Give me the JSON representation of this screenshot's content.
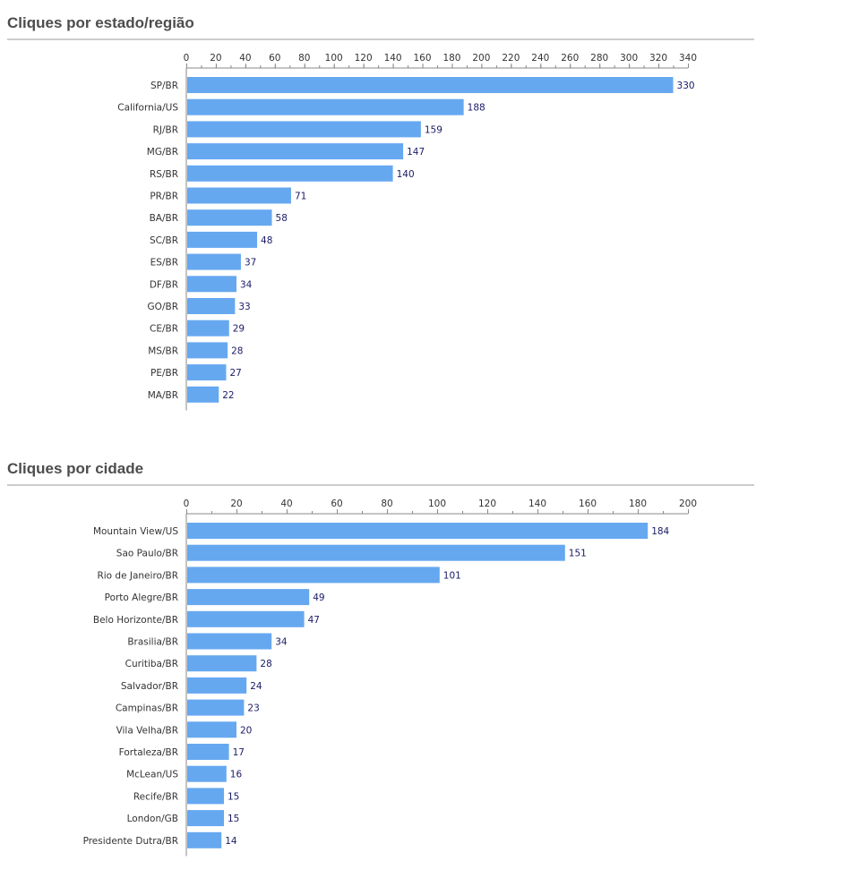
{
  "colors": {
    "bar": "#66a8f0",
    "value_label": "#1a1a66",
    "category_label": "#333333",
    "axis": "#888888",
    "title": "#4d4d4d"
  },
  "chart_data": [
    {
      "type": "bar",
      "orientation": "horizontal",
      "title": "Cliques por estado/região",
      "xlim": [
        0,
        340
      ],
      "ticks": [
        0,
        20,
        40,
        60,
        80,
        100,
        120,
        140,
        160,
        180,
        200,
        220,
        240,
        260,
        280,
        300,
        320,
        340
      ],
      "minor_tick_step": 10,
      "axis_position": "top",
      "grid": false,
      "categories": [
        "SP/BR",
        "California/US",
        "RJ/BR",
        "MG/BR",
        "RS/BR",
        "PR/BR",
        "BA/BR",
        "SC/BR",
        "ES/BR",
        "DF/BR",
        "GO/BR",
        "CE/BR",
        "MS/BR",
        "PE/BR",
        "MA/BR"
      ],
      "values": [
        330,
        188,
        159,
        147,
        140,
        71,
        58,
        48,
        37,
        34,
        33,
        29,
        28,
        27,
        22
      ]
    },
    {
      "type": "bar",
      "orientation": "horizontal",
      "title": "Cliques por cidade",
      "xlim": [
        0,
        200
      ],
      "ticks": [
        0,
        20,
        40,
        60,
        80,
        100,
        120,
        140,
        160,
        180,
        200
      ],
      "minor_tick_step": 10,
      "axis_position": "top",
      "grid": false,
      "categories": [
        "Mountain View/US",
        "Sao Paulo/BR",
        "Rio de Janeiro/BR",
        "Porto Alegre/BR",
        "Belo Horizonte/BR",
        "Brasilia/BR",
        "Curitiba/BR",
        "Salvador/BR",
        "Campinas/BR",
        "Vila Velha/BR",
        "Fortaleza/BR",
        "McLean/US",
        "Recife/BR",
        "London/GB",
        "Presidente Dutra/BR"
      ],
      "values": [
        184,
        151,
        101,
        49,
        47,
        34,
        28,
        24,
        23,
        20,
        17,
        16,
        15,
        15,
        14
      ]
    }
  ]
}
